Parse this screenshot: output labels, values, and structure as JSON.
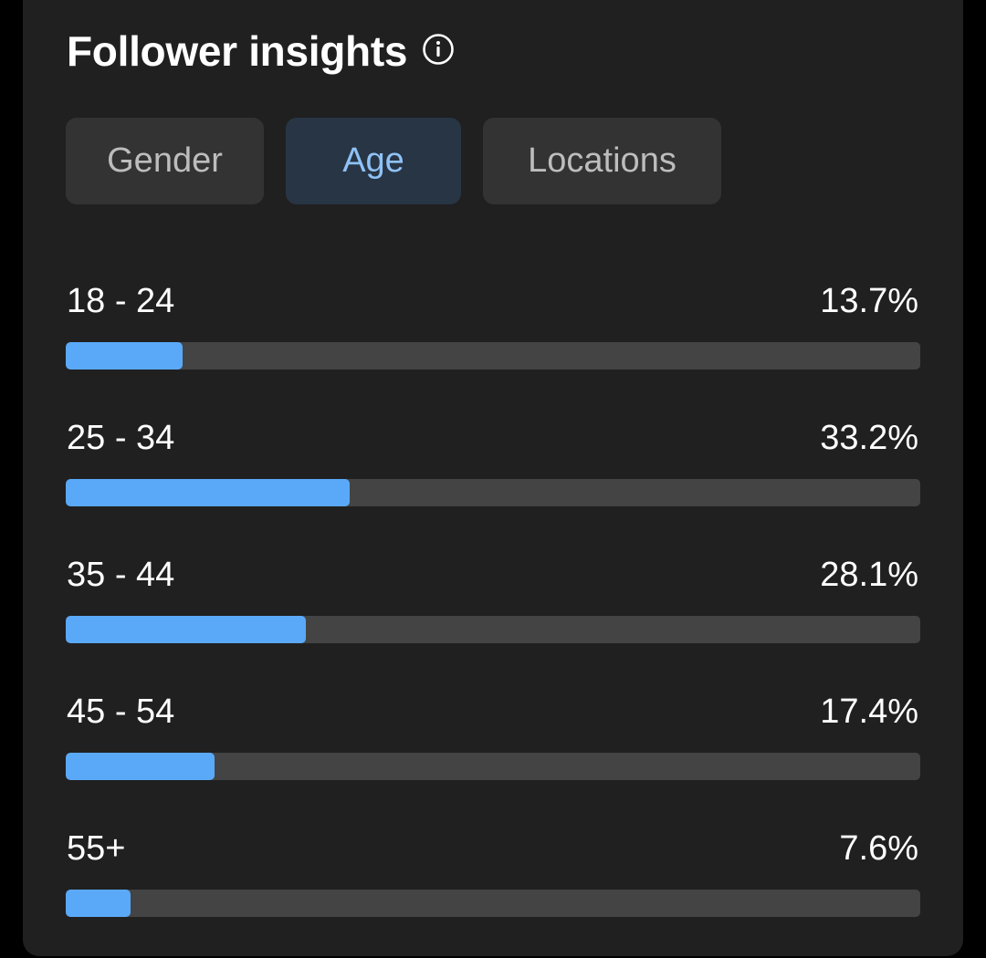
{
  "header": {
    "title": "Follower insights",
    "info_icon": "info-circle-icon"
  },
  "tabs": [
    {
      "label": "Gender",
      "selected": false
    },
    {
      "label": "Age",
      "selected": true
    },
    {
      "label": "Locations",
      "selected": false
    }
  ],
  "colors": {
    "bar_fill": "#5aa9f8",
    "bar_track": "#444444",
    "selected_tab_bg": "#283544",
    "selected_tab_text": "#8fc2f6",
    "card_bg": "#202020"
  },
  "age_groups": [
    {
      "label": "18 - 24",
      "percent_text": "13.7%",
      "value": 13.7
    },
    {
      "label": "25 - 34",
      "percent_text": "33.2%",
      "value": 33.2
    },
    {
      "label": "35 - 44",
      "percent_text": "28.1%",
      "value": 28.1
    },
    {
      "label": "45 - 54",
      "percent_text": "17.4%",
      "value": 17.4
    },
    {
      "label": "55+",
      "percent_text": "7.6%",
      "value": 7.6
    }
  ]
}
